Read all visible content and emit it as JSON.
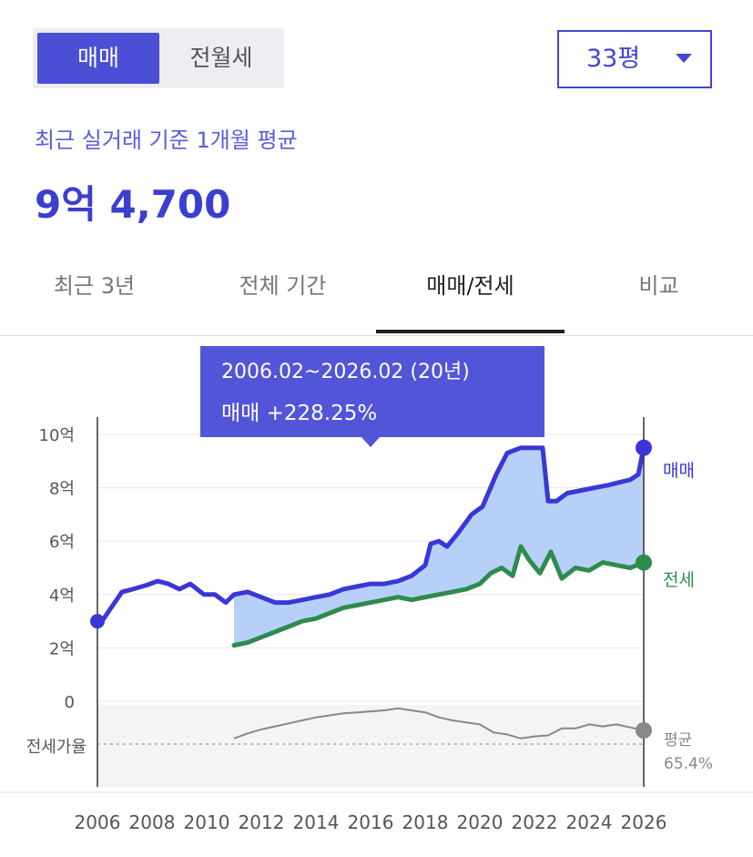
{
  "toggle": {
    "active": "매매",
    "inactive": "전월세"
  },
  "size_select": {
    "value": "33평"
  },
  "summary": {
    "subtitle": "최근 실거래 기준 1개월 평균",
    "price": "9억 4,700"
  },
  "tabs": [
    {
      "label": "최근 3년"
    },
    {
      "label": "전체 기간"
    },
    {
      "label": "매매/전세",
      "active": true
    },
    {
      "label": "비교"
    }
  ],
  "colors": {
    "sale": "#3a37d6",
    "rent": "#2e8b4e",
    "area": "#a9c8f7",
    "ratio": "#888888"
  },
  "chart_data": {
    "type": "line",
    "tooltip": {
      "period": "2006.02~2026.02 (20년)",
      "change": "매매 +228.25%"
    },
    "x_ticks": [
      "2006",
      "2008",
      "2010",
      "2012",
      "2014",
      "2016",
      "2018",
      "2020",
      "2022",
      "2024",
      "2026"
    ],
    "y_ticks": [
      "10억",
      "8억",
      "6억",
      "4억",
      "2억",
      "0"
    ],
    "y_range": [
      0,
      11
    ],
    "x_range": [
      2006,
      2026
    ],
    "ratio_label": "전세가율",
    "ratio_end_label": {
      "line1": "평균",
      "line2": "65.4%"
    },
    "series": [
      {
        "name": "매매",
        "x": [
          2006.0,
          2006.2,
          2006.5,
          2006.9,
          2007.3,
          2007.8,
          2008.2,
          2008.6,
          2009.0,
          2009.4,
          2009.9,
          2010.3,
          2010.7,
          2011.0,
          2011.5,
          2012.0,
          2012.5,
          2013.0,
          2013.5,
          2014.0,
          2014.5,
          2015.0,
          2015.5,
          2016.0,
          2016.5,
          2017.0,
          2017.5,
          2018.0,
          2018.2,
          2018.5,
          2018.8,
          2019.2,
          2019.7,
          2020.1,
          2020.6,
          2021.0,
          2021.5,
          2021.9,
          2022.3,
          2022.5,
          2022.8,
          2023.2,
          2023.7,
          2024.2,
          2024.7,
          2025.1,
          2025.5,
          2025.8,
          2026.0
        ],
        "values": [
          3.0,
          3.05,
          3.5,
          4.1,
          4.2,
          4.35,
          4.5,
          4.4,
          4.2,
          4.4,
          4.0,
          4.0,
          3.7,
          4.0,
          4.1,
          3.9,
          3.7,
          3.7,
          3.8,
          3.9,
          4.0,
          4.2,
          4.3,
          4.4,
          4.4,
          4.5,
          4.7,
          5.1,
          5.9,
          6.0,
          5.8,
          6.3,
          7.0,
          7.3,
          8.5,
          9.3,
          9.5,
          9.5,
          9.5,
          7.5,
          7.5,
          7.8,
          7.9,
          8.0,
          8.1,
          8.2,
          8.3,
          8.5,
          9.5
        ]
      },
      {
        "name": "전세",
        "x": [
          2011.0,
          2011.5,
          2012.0,
          2012.5,
          2013.0,
          2013.5,
          2014.0,
          2014.5,
          2015.0,
          2015.5,
          2016.0,
          2016.5,
          2017.0,
          2017.5,
          2018.0,
          2018.5,
          2019.0,
          2019.5,
          2020.0,
          2020.4,
          2020.8,
          2021.2,
          2021.5,
          2021.8,
          2022.2,
          2022.6,
          2023.0,
          2023.5,
          2024.0,
          2024.5,
          2025.0,
          2025.5,
          2026.0
        ],
        "values": [
          2.1,
          2.2,
          2.4,
          2.6,
          2.8,
          3.0,
          3.1,
          3.3,
          3.5,
          3.6,
          3.7,
          3.8,
          3.9,
          3.8,
          3.9,
          4.0,
          4.1,
          4.2,
          4.4,
          4.8,
          5.0,
          4.7,
          5.8,
          5.3,
          4.8,
          5.6,
          4.6,
          5.0,
          4.9,
          5.2,
          5.1,
          5.0,
          5.2
        ]
      },
      {
        "name": "전세가율",
        "x": [
          2011.0,
          2011.5,
          2012.0,
          2012.5,
          2013.0,
          2013.5,
          2014.0,
          2014.5,
          2015.0,
          2015.5,
          2016.0,
          2016.5,
          2017.0,
          2017.5,
          2018.0,
          2018.5,
          2019.0,
          2019.5,
          2020.0,
          2020.5,
          2021.0,
          2021.5,
          2022.0,
          2022.5,
          2023.0,
          2023.5,
          2024.0,
          2024.5,
          2025.0,
          2025.5,
          2026.0
        ],
        "values": [
          52,
          57,
          61,
          64,
          67,
          70,
          73,
          75,
          77,
          78,
          79,
          80,
          82,
          80,
          78,
          73,
          70,
          68,
          66,
          58,
          56,
          52,
          54,
          55,
          62,
          62,
          66,
          64,
          66,
          63,
          60
        ]
      }
    ]
  }
}
